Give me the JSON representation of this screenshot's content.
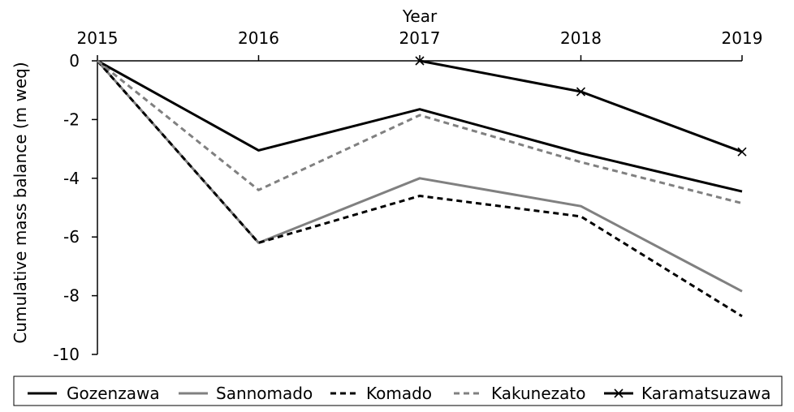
{
  "chart_data": {
    "type": "line",
    "title": "",
    "xlabel": "Year",
    "ylabel": "Cumulative mass balance (m weq)",
    "x": [
      2015,
      2016,
      2017,
      2018,
      2019
    ],
    "x_tick_labels": [
      "2015",
      "2016",
      "2017",
      "2018",
      "2019"
    ],
    "xlim": [
      2015,
      2019
    ],
    "x_axis_position": "top",
    "ylim": [
      -10,
      0
    ],
    "y_ticks": [
      0,
      -2,
      -4,
      -6,
      -8,
      -10
    ],
    "y_tick_labels": [
      "0",
      "-2",
      "-4",
      "-6",
      "-8",
      "-10"
    ],
    "grid": false,
    "legend_position": "bottom",
    "series": [
      {
        "name": "Gozenzawa",
        "x": [
          2015,
          2016,
          2017,
          2018,
          2019
        ],
        "values": [
          0,
          -3.05,
          -1.65,
          -3.15,
          -4.45
        ],
        "color": "#000000",
        "dash": "solid",
        "marker": "none"
      },
      {
        "name": "Sannomado",
        "x": [
          2015,
          2016,
          2017,
          2018,
          2019
        ],
        "values": [
          0,
          -6.2,
          -4.0,
          -4.95,
          -7.85
        ],
        "color": "#808080",
        "dash": "solid",
        "marker": "none"
      },
      {
        "name": "Komado",
        "x": [
          2015,
          2016,
          2017,
          2018,
          2019
        ],
        "values": [
          0,
          -6.2,
          -4.6,
          -5.3,
          -8.7
        ],
        "color": "#000000",
        "dash": "dashed",
        "marker": "none"
      },
      {
        "name": "Kakunezato",
        "x": [
          2015,
          2016,
          2017,
          2018,
          2019
        ],
        "values": [
          0,
          -4.4,
          -1.85,
          -3.45,
          -4.85
        ],
        "color": "#808080",
        "dash": "dashed",
        "marker": "none"
      },
      {
        "name": "Karamatsuzawa",
        "x": [
          2017,
          2018,
          2019
        ],
        "values": [
          0,
          -1.05,
          -3.1
        ],
        "color": "#000000",
        "dash": "solid",
        "marker": "x"
      }
    ]
  }
}
